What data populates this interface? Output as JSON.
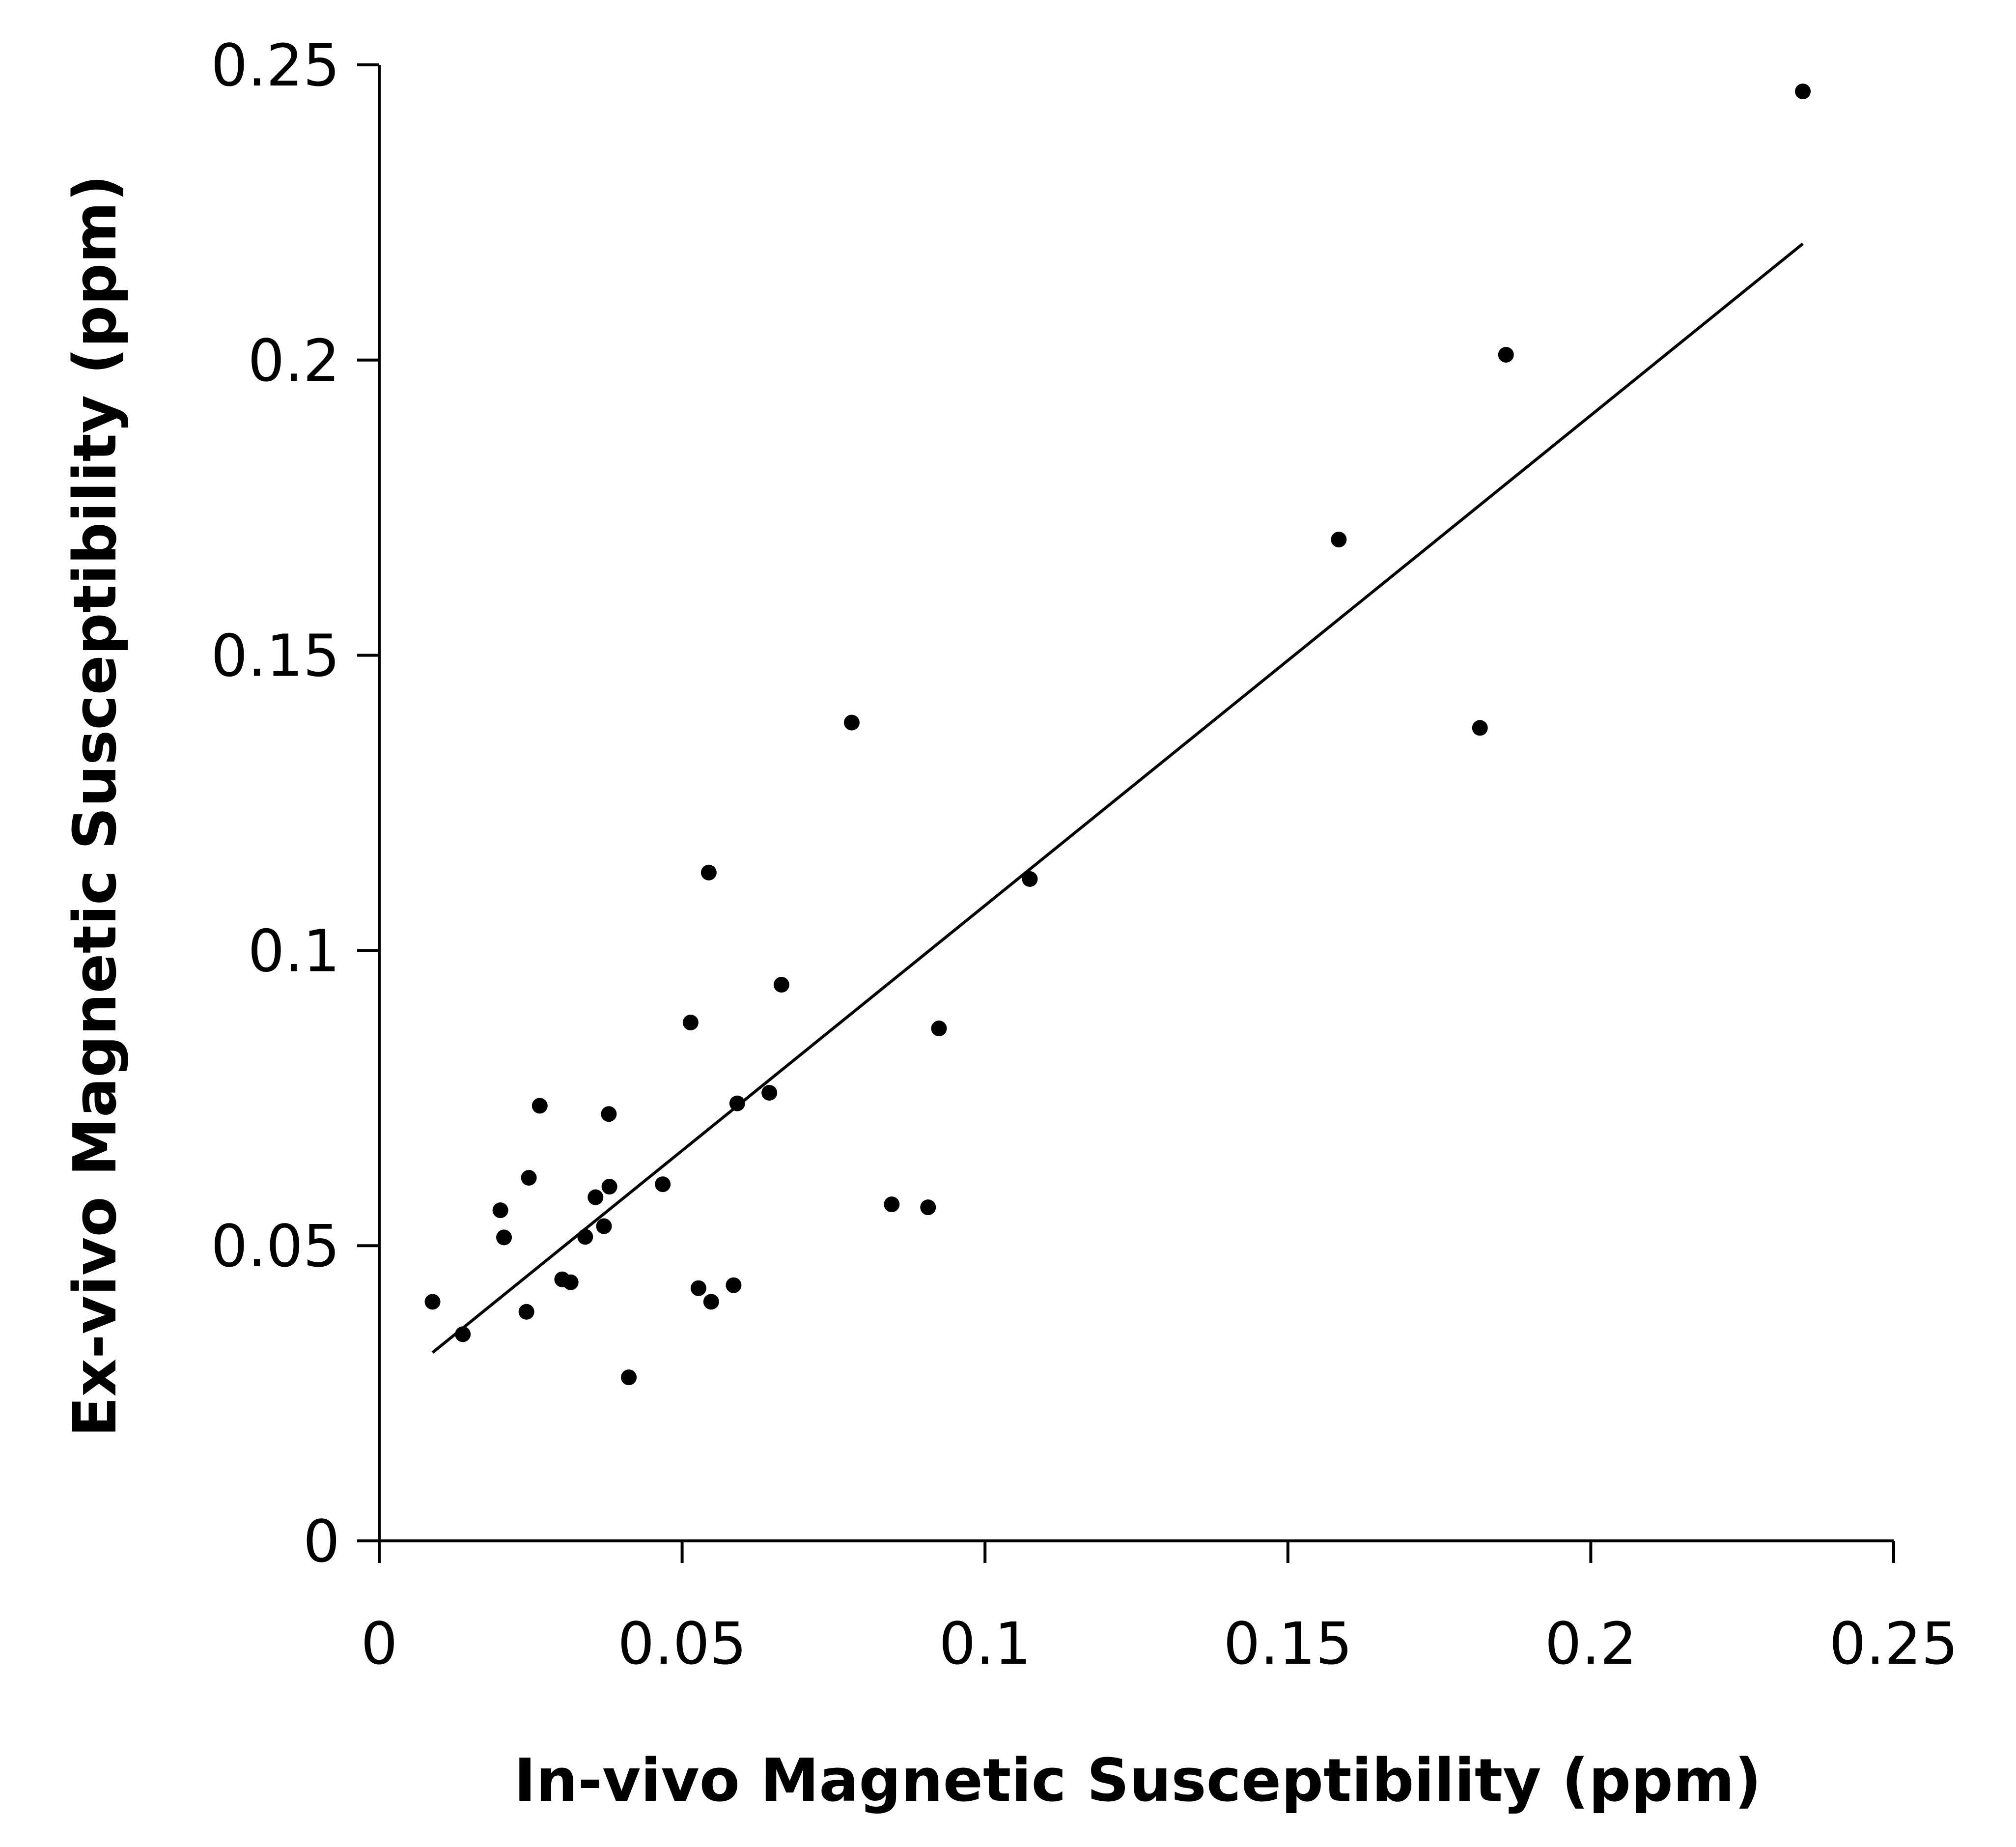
{
  "chart_data": {
    "type": "scatter",
    "title": "",
    "xlabel": "In-vivo Magnetic Susceptibility (ppm)",
    "ylabel": "Ex-vivo Magnetic Susceptibility (ppm)",
    "xlim": [
      0,
      0.25
    ],
    "ylim": [
      0,
      0.25
    ],
    "x_ticks": [
      "0",
      "0.05",
      "0.1",
      "0.15",
      "0.2",
      "0.25"
    ],
    "y_ticks": [
      "0",
      "0.05",
      "0.1",
      "0.15",
      "0.2",
      "0.25"
    ],
    "grid": false,
    "legend": "none",
    "series": [
      {
        "name": "samples",
        "points": [
          [
            0.0088,
            0.0405
          ],
          [
            0.0138,
            0.035
          ],
          [
            0.02,
            0.056
          ],
          [
            0.0206,
            0.0514
          ],
          [
            0.0243,
            0.0388
          ],
          [
            0.0247,
            0.0615
          ],
          [
            0.0265,
            0.0737
          ],
          [
            0.0302,
            0.0443
          ],
          [
            0.0316,
            0.0438
          ],
          [
            0.034,
            0.0515
          ],
          [
            0.0357,
            0.0582
          ],
          [
            0.0371,
            0.0533
          ],
          [
            0.0379,
            0.0723
          ],
          [
            0.038,
            0.06
          ],
          [
            0.0412,
            0.0277
          ],
          [
            0.0468,
            0.0604
          ],
          [
            0.0514,
            0.0878
          ],
          [
            0.0527,
            0.0428
          ],
          [
            0.0544,
            0.1132
          ],
          [
            0.0548,
            0.0405
          ],
          [
            0.0585,
            0.0433
          ],
          [
            0.0591,
            0.0741
          ],
          [
            0.0644,
            0.0759
          ],
          [
            0.0664,
            0.0942
          ],
          [
            0.078,
            0.1386
          ],
          [
            0.0846,
            0.057
          ],
          [
            0.0906,
            0.0565
          ],
          [
            0.0924,
            0.0868
          ],
          [
            0.1074,
            0.1121
          ],
          [
            0.1584,
            0.1696
          ],
          [
            0.1817,
            0.1377
          ],
          [
            0.186,
            0.2009
          ],
          [
            0.235,
            0.2455
          ]
        ]
      }
    ],
    "trendline": {
      "type": "linear",
      "x": [
        0.0088,
        0.235
      ],
      "y": [
        0.0319,
        0.2197
      ]
    }
  }
}
